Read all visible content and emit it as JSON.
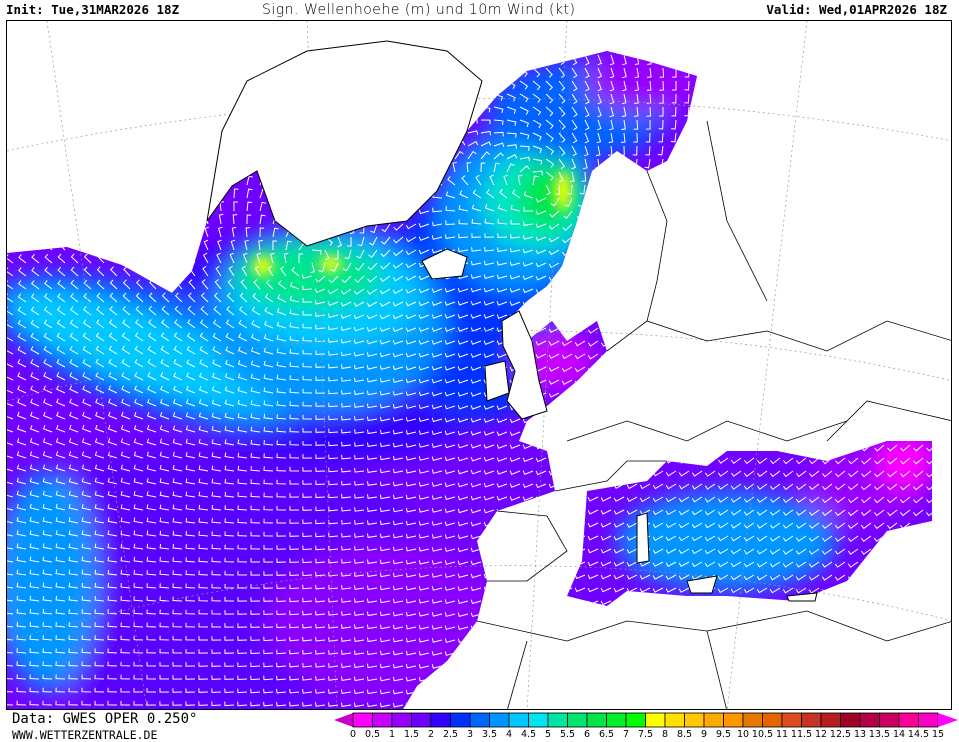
{
  "header": {
    "init": "Init: Tue,31MAR2026 18Z",
    "title": "Sign. Wellenhoehe (m) und 10m Wind (kt)",
    "valid": "Valid: Wed,01APR2026 18Z"
  },
  "footer": {
    "data_source": "Data: GWES OPER 0.250°",
    "website": "WWW.WETTERZENTRALE.DE"
  },
  "legend": {
    "unit": "m",
    "labels": [
      "0",
      "0.5",
      "1",
      "1.5",
      "2",
      "2.5",
      "3",
      "3.5",
      "4",
      "4.5",
      "5",
      "5.5",
      "6",
      "6.5",
      "7",
      "7.5",
      "8",
      "8.5",
      "9",
      "9.5",
      "10",
      "10.5",
      "11",
      "11.5",
      "12",
      "12.5",
      "13",
      "13.5",
      "14",
      "14.5",
      "15"
    ],
    "colors": [
      "#ff00ff",
      "#c800ff",
      "#9600ff",
      "#6e00ff",
      "#3200ff",
      "#0032ff",
      "#0064ff",
      "#0096ff",
      "#00c8ff",
      "#00e6f0",
      "#00e6a0",
      "#00e66e",
      "#00e646",
      "#00f028",
      "#00ff00",
      "#ffff00",
      "#ffe100",
      "#ffc800",
      "#ffaa00",
      "#ff9600",
      "#e67800",
      "#e66400",
      "#dc4b1e",
      "#c83223",
      "#b41e1e",
      "#a00028",
      "#b40046",
      "#c80064",
      "#ff0096",
      "#ff00c8"
    ],
    "under_color": "#c800c8",
    "over_color": "#ff00ff"
  }
}
